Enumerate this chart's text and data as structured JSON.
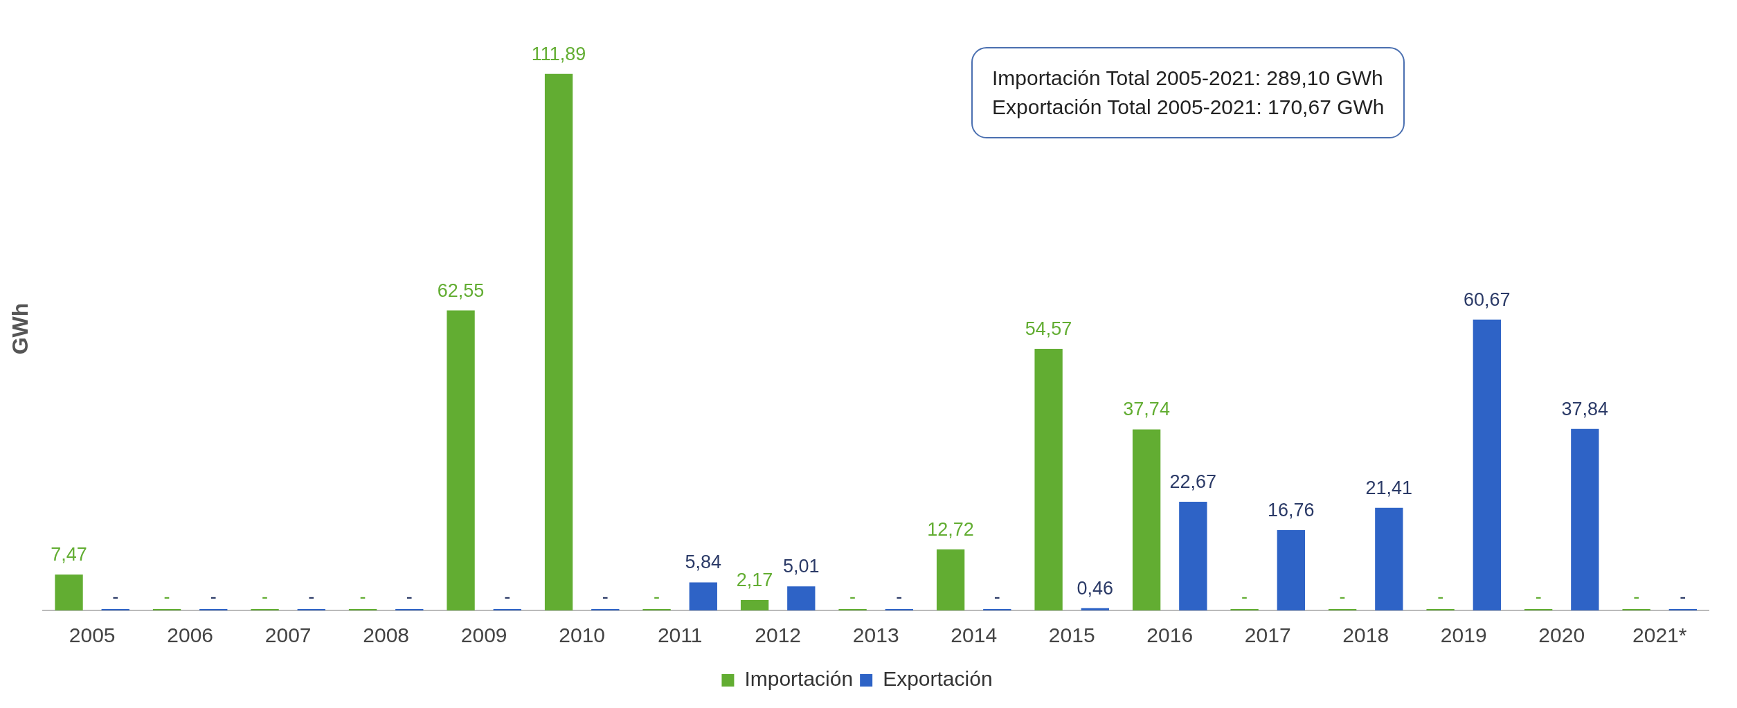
{
  "chart_data": {
    "type": "bar",
    "ylabel": "GWh",
    "categories": [
      "2005",
      "2006",
      "2007",
      "2008",
      "2009",
      "2010",
      "2011",
      "2012",
      "2013",
      "2014",
      "2015",
      "2016",
      "2017",
      "2018",
      "2019",
      "2020",
      "2021*"
    ],
    "series": [
      {
        "name": "Importación",
        "color": "#62ad32",
        "values": [
          7.47,
          0,
          0,
          0,
          62.55,
          111.89,
          0,
          2.17,
          0,
          12.72,
          54.57,
          37.74,
          0,
          0,
          0,
          0,
          0
        ],
        "value_labels": [
          "7,47",
          "-",
          "-",
          "-",
          "62,55",
          "111,89",
          "-",
          "2,17",
          "-",
          "12,72",
          "54,57",
          "37,74",
          "-",
          "-",
          "-",
          "-",
          "-"
        ]
      },
      {
        "name": "Exportación",
        "color": "#2e63c6",
        "values": [
          0,
          0,
          0,
          0,
          0,
          0,
          5.84,
          5.01,
          0,
          0,
          0.46,
          22.67,
          16.76,
          21.41,
          60.67,
          37.84,
          0
        ],
        "value_labels": [
          "-",
          "-",
          "-",
          "-",
          "-",
          "-",
          "5,84",
          "5,01",
          "-",
          "-",
          "0,46",
          "22,67",
          "16,76",
          "21,41",
          "60,67",
          "37,84",
          "-"
        ]
      }
    ],
    "annotations": [
      "Importación Total 2005-2021:  289,10 GWh\nExportación Total 2005-2021:  170,67 GWh"
    ],
    "legend": "bottom",
    "grid": false
  }
}
